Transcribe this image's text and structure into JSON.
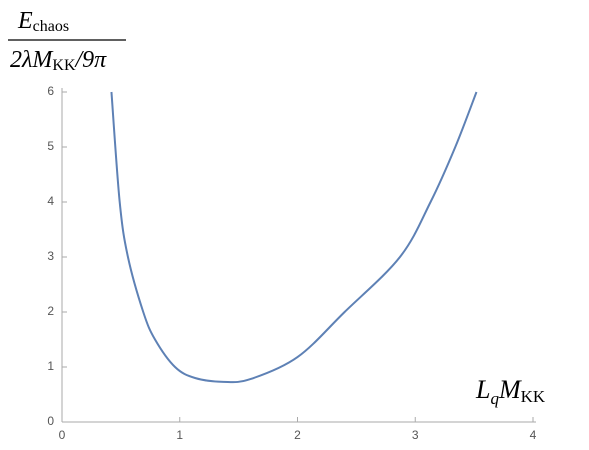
{
  "chart_data": {
    "type": "line",
    "ylabel": {
      "numerator": [
        "E",
        "chaos"
      ],
      "denominator": [
        "2λM",
        "KK",
        "/9π"
      ]
    },
    "xlabel": [
      "L",
      "q",
      "M",
      "KK"
    ],
    "x": [
      0.42,
      0.49,
      0.56,
      0.69,
      0.79,
      0.96,
      1.13,
      1.37,
      1.6,
      2.0,
      2.4,
      2.87,
      3.13,
      3.34,
      3.52
    ],
    "series": [
      {
        "color": "#5e81b5",
        "values": [
          6,
          4,
          3,
          2,
          1.5,
          1,
          0.8,
          0.73,
          0.78,
          1.18,
          2,
          3,
          4,
          5,
          6
        ]
      }
    ],
    "xlim": [
      0,
      4
    ],
    "ylim": [
      0,
      6
    ],
    "xticks": [
      0,
      1,
      2,
      3,
      4
    ],
    "yticks": [
      0,
      1,
      2,
      3,
      4,
      5,
      6
    ]
  }
}
